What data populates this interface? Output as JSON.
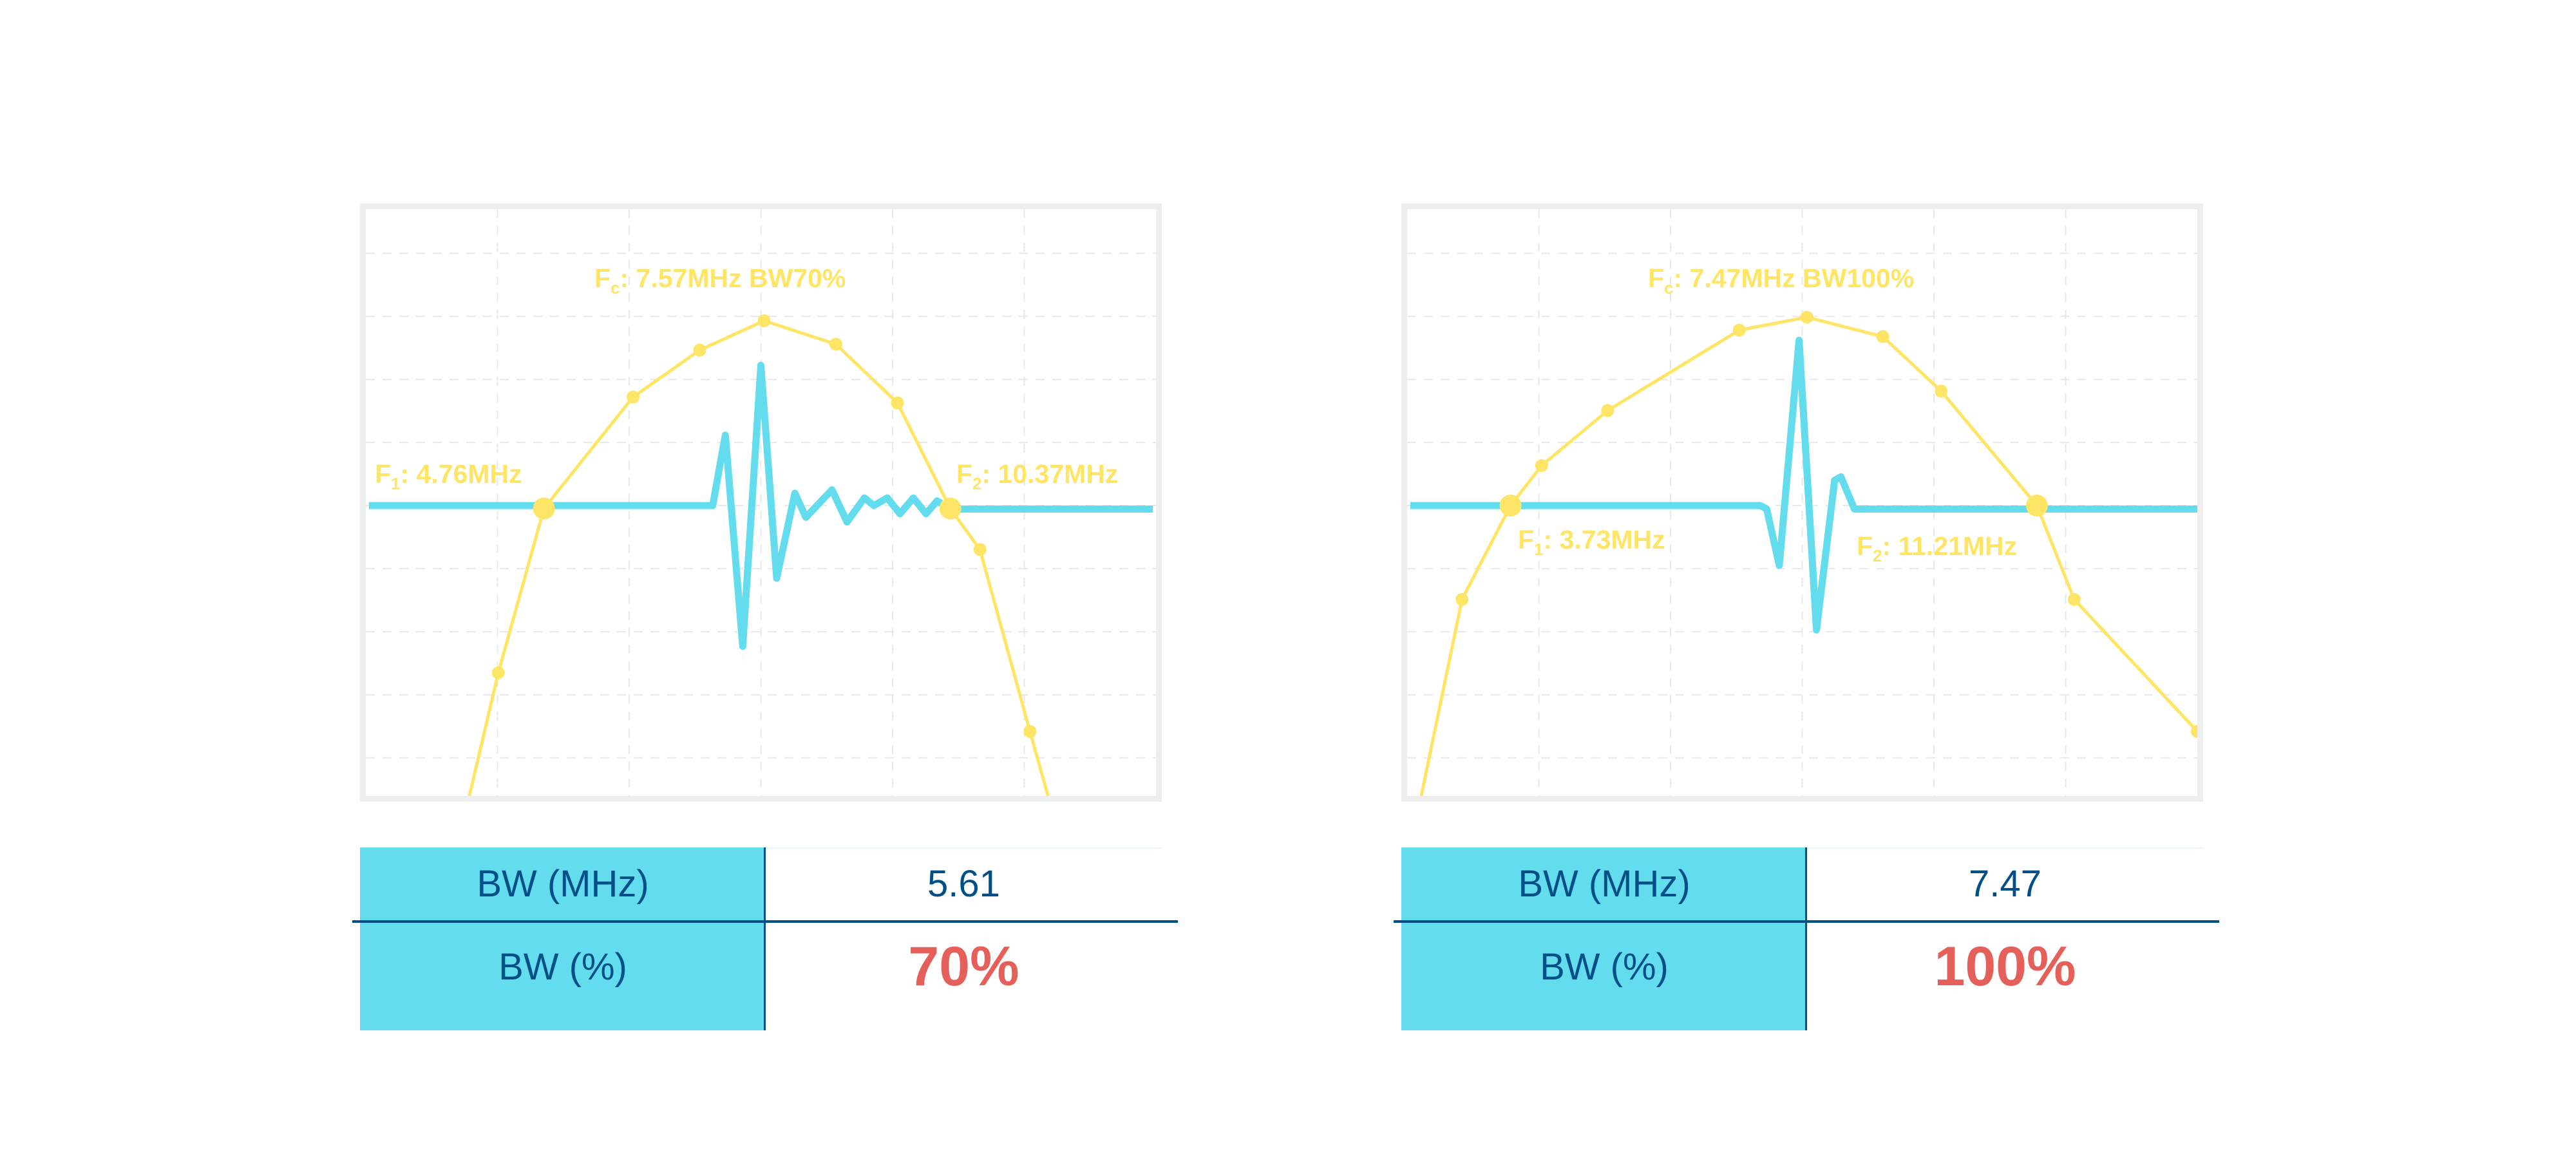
{
  "colors": {
    "spectrum": "#FFE566",
    "waveform": "#63DCEE",
    "table_header": "#63DCEE",
    "text": "#004F86",
    "highlight": "#E5605A",
    "frame": "#EEEEEE"
  },
  "panels": [
    {
      "fc_label": {
        "symbol": "F",
        "sub": "c",
        "text": ": 7.57MHz BW70%"
      },
      "f1_label": {
        "symbol": "F",
        "sub": "1",
        "text": ": 4.76MHz"
      },
      "f2_label": {
        "symbol": "F",
        "sub": "2",
        "text": ": 10.37MHz"
      },
      "table": {
        "row1_label": "BW (MHz)",
        "row1_value": "5.61",
        "row2_label": "BW (%)",
        "row2_value": "70%"
      }
    },
    {
      "fc_label": {
        "symbol": "F",
        "sub": "c",
        "text": ": 7.47MHz BW100%"
      },
      "f1_label": {
        "symbol": "F",
        "sub": "1",
        "text": ": 3.73MHz"
      },
      "f2_label": {
        "symbol": "F",
        "sub": "2",
        "text": ": 11.21MHz"
      },
      "table": {
        "row1_label": "BW (MHz)",
        "row1_value": "7.47",
        "row2_label": "BW (%)",
        "row2_value": "100%"
      }
    }
  ],
  "chart_data": [
    {
      "type": "line",
      "grid": true,
      "xlim": [
        2.3,
        13.21
      ],
      "ylim": [
        0,
        1
      ],
      "spectrum": {
        "x_mhz": [
          3.73,
          4.13,
          4.76,
          5.99,
          6.91,
          7.8,
          8.79,
          9.64,
          10.37,
          10.78,
          11.47,
          11.72
        ],
        "level": [
          0,
          0.21,
          0.49,
          0.68,
          0.76,
          0.81,
          0.77,
          0.67,
          0.49,
          0.42,
          0.11,
          0
        ]
      },
      "markers": {
        "f1_mhz": 4.76,
        "f2_mhz": 10.37,
        "fc_mhz": 7.57,
        "bw_mhz": 5.61,
        "bw_pct": 70
      },
      "waveform": {
        "t": [
          0.004,
          0.439,
          0.455,
          0.477,
          0.5,
          0.52,
          0.543,
          0.557,
          0.59,
          0.609,
          0.631,
          0.643,
          0.66,
          0.676,
          0.693,
          0.709,
          0.723,
          0.74,
          0.996
        ],
        "level": [
          0.495,
          0.495,
          0.615,
          0.255,
          0.734,
          0.371,
          0.516,
          0.475,
          0.522,
          0.467,
          0.508,
          0.495,
          0.508,
          0.481,
          0.508,
          0.481,
          0.503,
          0.489,
          0.489
        ]
      }
    },
    {
      "type": "line",
      "grid": true,
      "xlim": [
        2.26,
        13.49
      ],
      "ylim": [
        0,
        1
      ],
      "spectrum": {
        "x_mhz": [
          2.46,
          3.04,
          3.73,
          4.17,
          5.11,
          6.98,
          7.94,
          9.02,
          9.85,
          11.21,
          11.74,
          13.49
        ],
        "level": [
          0,
          0.335,
          0.495,
          0.563,
          0.657,
          0.794,
          0.816,
          0.783,
          0.69,
          0.495,
          0.335,
          0.11
        ]
      },
      "markers": {
        "f1_mhz": 3.73,
        "f2_mhz": 11.21,
        "fc_mhz": 7.47,
        "bw_mhz": 7.47,
        "bw_pct": 100
      },
      "waveform": {
        "t": [
          0.004,
          0.447,
          0.455,
          0.471,
          0.496,
          0.518,
          0.541,
          0.549,
          0.566,
          1.0
        ],
        "level": [
          0.495,
          0.495,
          0.489,
          0.393,
          0.777,
          0.283,
          0.538,
          0.544,
          0.489,
          0.489
        ]
      }
    }
  ]
}
